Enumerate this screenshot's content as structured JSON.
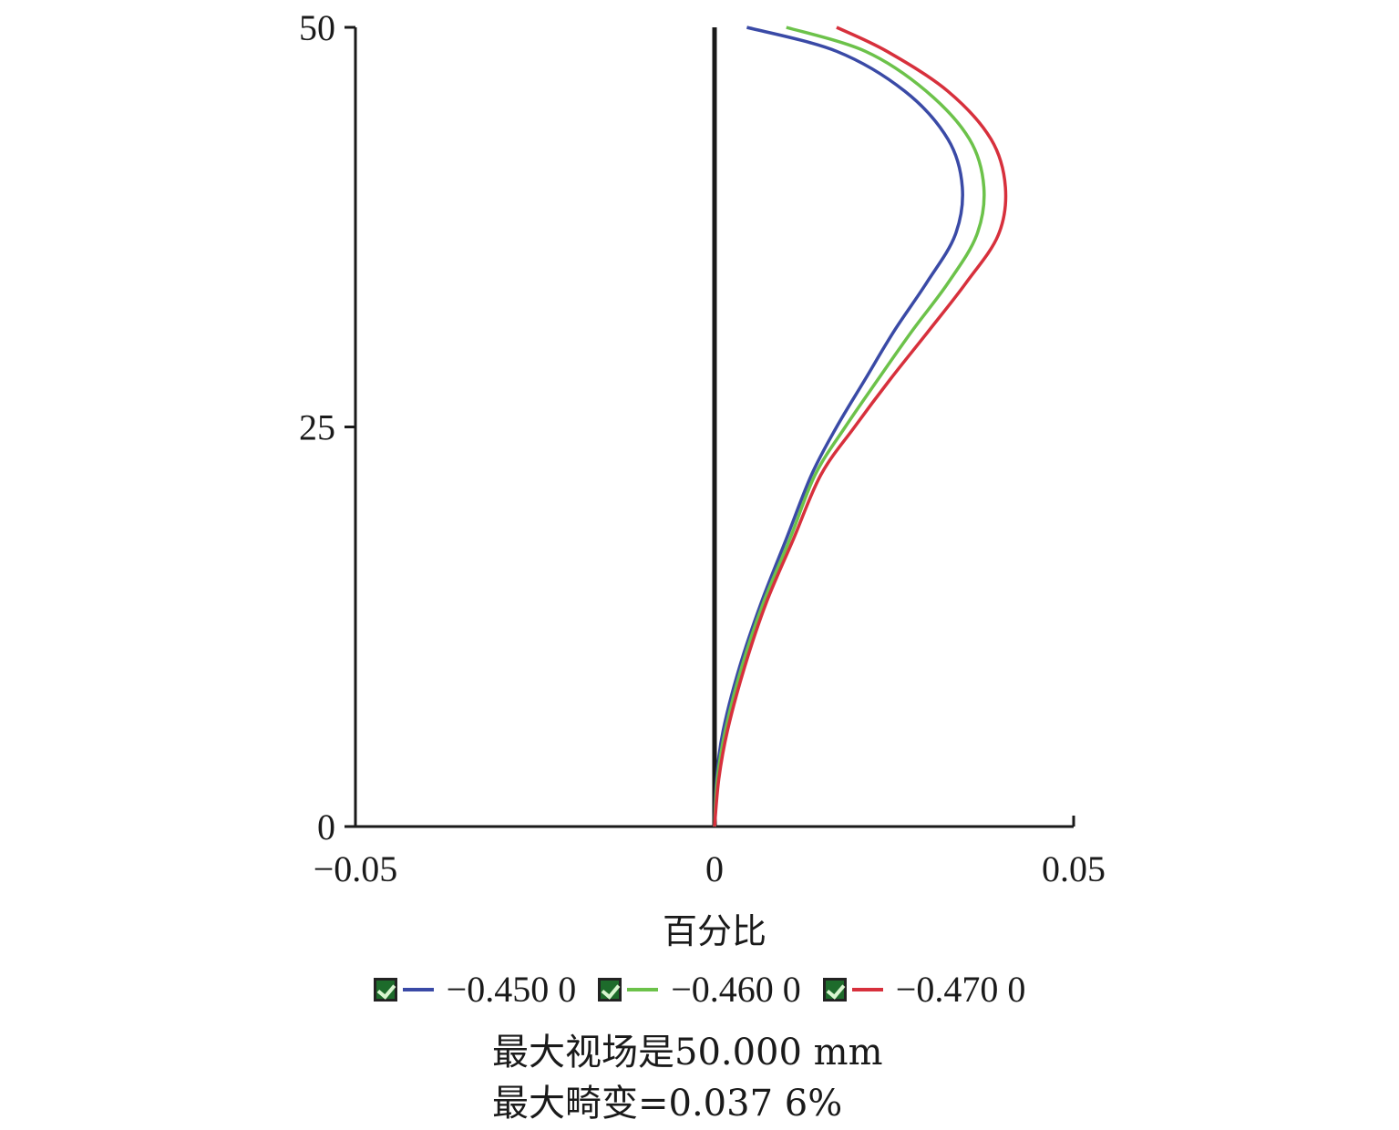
{
  "chart_data": {
    "type": "line",
    "xlabel": "百分比",
    "ylabel": "",
    "xlim": [
      -0.05,
      0.05
    ],
    "ylim": [
      0,
      50
    ],
    "xticks": [
      "−0.05",
      "0",
      "0.05"
    ],
    "yticks": [
      "0",
      "25",
      "50"
    ],
    "grid": false,
    "legend_position": "bottom",
    "series": [
      {
        "name": "−0.450 0",
        "color": "#3a4aa6",
        "points": [
          [
            0,
            0
          ],
          [
            0.0003,
            3
          ],
          [
            0.0012,
            6
          ],
          [
            0.0035,
            10
          ],
          [
            0.0065,
            14
          ],
          [
            0.01,
            18
          ],
          [
            0.0135,
            22
          ],
          [
            0.017,
            25
          ],
          [
            0.021,
            28
          ],
          [
            0.025,
            31
          ],
          [
            0.0295,
            34
          ],
          [
            0.0335,
            37
          ],
          [
            0.0345,
            40
          ],
          [
            0.0325,
            43
          ],
          [
            0.0265,
            46
          ],
          [
            0.017,
            48.5
          ],
          [
            0.0045,
            50
          ]
        ]
      },
      {
        "name": "−0.460 0",
        "color": "#6cc24a",
        "points": [
          [
            0,
            0
          ],
          [
            0.0004,
            3
          ],
          [
            0.0015,
            6
          ],
          [
            0.0038,
            10
          ],
          [
            0.0068,
            14
          ],
          [
            0.0105,
            18
          ],
          [
            0.014,
            22
          ],
          [
            0.0182,
            25
          ],
          [
            0.0228,
            28
          ],
          [
            0.0275,
            31
          ],
          [
            0.0325,
            34
          ],
          [
            0.0365,
            37
          ],
          [
            0.0375,
            40
          ],
          [
            0.0355,
            43
          ],
          [
            0.0295,
            46
          ],
          [
            0.021,
            48.5
          ],
          [
            0.01,
            50
          ]
        ]
      },
      {
        "name": "−0.470 0",
        "color": "#d7303c",
        "points": [
          [
            0,
            0
          ],
          [
            0.0006,
            3
          ],
          [
            0.0018,
            6
          ],
          [
            0.0042,
            10
          ],
          [
            0.0072,
            14
          ],
          [
            0.011,
            18
          ],
          [
            0.0148,
            22
          ],
          [
            0.0195,
            25
          ],
          [
            0.0245,
            28
          ],
          [
            0.0298,
            31
          ],
          [
            0.035,
            34
          ],
          [
            0.0395,
            37
          ],
          [
            0.0405,
            40
          ],
          [
            0.0385,
            43
          ],
          [
            0.0325,
            46
          ],
          [
            0.024,
            48.5
          ],
          [
            0.017,
            50
          ]
        ]
      }
    ],
    "annotations": [
      "最大视场是50.000 mm",
      "最大畸变=0.037 6%"
    ]
  }
}
